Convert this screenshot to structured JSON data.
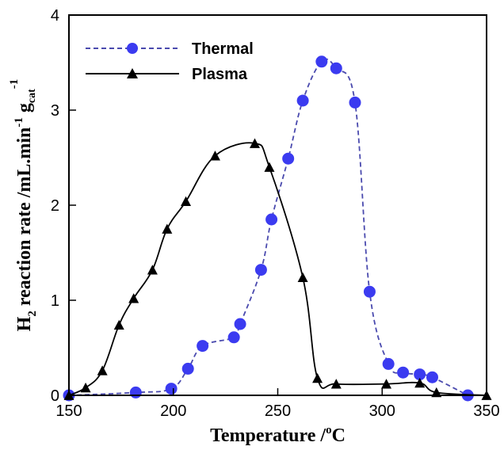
{
  "chart_data": {
    "type": "line",
    "xlabel": {
      "main": "Temperature /",
      "sup": "o",
      "tail": "C"
    },
    "ylabel": {
      "h": "H",
      "h_sub": "2",
      "main": " reaction rate /mL.min",
      "sup1": "-1",
      "mid": " g",
      "sub2": "cat",
      "sup2": "-1"
    },
    "xlim": [
      150,
      350
    ],
    "ylim": [
      0,
      4
    ],
    "x_ticks": [
      "150",
      "200",
      "250",
      "300",
      "350"
    ],
    "y_ticks": [
      "0",
      "1",
      "2",
      "3",
      "4"
    ],
    "x_tick_values": [
      150,
      200,
      250,
      300,
      350
    ],
    "y_tick_values": [
      0,
      1,
      2,
      3,
      4
    ],
    "grid": false,
    "legend_position": "top-left",
    "series": [
      {
        "name": "Thermal",
        "color": "#3b3bf0",
        "line_color": "#4a4aae",
        "line_style": "dashed",
        "marker": "circle",
        "x": [
          150,
          182,
          199,
          207,
          214,
          229,
          232,
          242,
          247,
          255,
          262,
          271,
          278,
          287,
          294,
          303,
          310,
          318,
          324,
          341
        ],
        "y": [
          0.0,
          0.03,
          0.07,
          0.28,
          0.52,
          0.61,
          0.75,
          1.32,
          1.85,
          2.49,
          3.1,
          3.51,
          3.44,
          3.08,
          1.09,
          0.33,
          0.24,
          0.22,
          0.19,
          0.0
        ]
      },
      {
        "name": "Plasma",
        "color": "#000000",
        "line_color": "#000000",
        "line_style": "solid",
        "marker": "triangle",
        "x": [
          150,
          158,
          166,
          174,
          181,
          190,
          197,
          206,
          220,
          239,
          246,
          262,
          269,
          278,
          302,
          318,
          326,
          350
        ],
        "y": [
          0.0,
          0.08,
          0.26,
          0.74,
          1.02,
          1.32,
          1.75,
          2.04,
          2.52,
          2.65,
          2.4,
          1.24,
          0.18,
          0.12,
          0.12,
          0.13,
          0.03,
          0.0
        ]
      }
    ]
  }
}
